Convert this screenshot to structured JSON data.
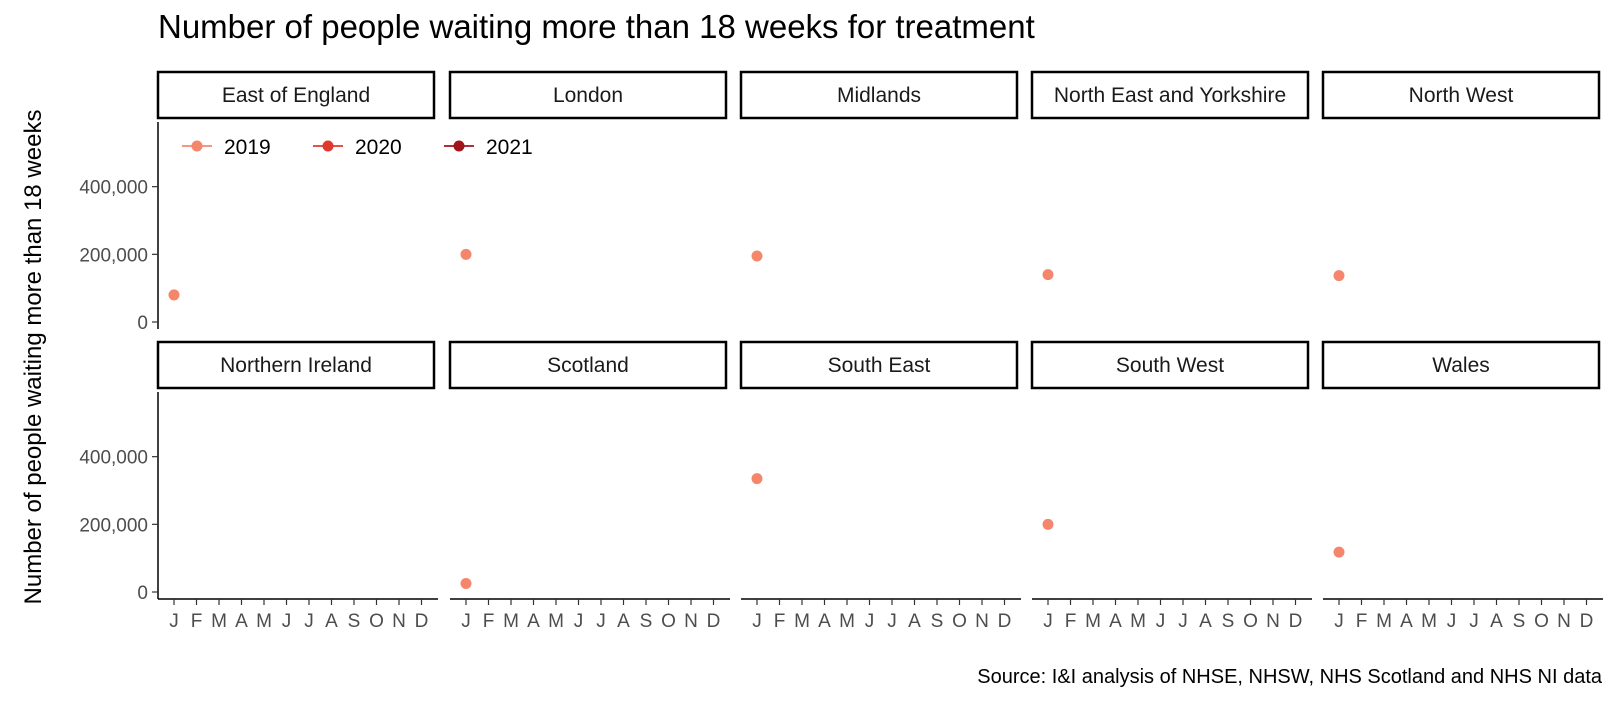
{
  "chart_data": {
    "type": "scatter",
    "title": "Number of people waiting more than 18 weeks for treatment",
    "ylabel": "Number of people waiting more than 18 weeks",
    "xlabel": "",
    "caption": "Source: I&I analysis of NHSE, NHSW, NHS Scotland and NHS NI data",
    "x_ticks": [
      "J",
      "F",
      "M",
      "A",
      "M",
      "J",
      "J",
      "A",
      "S",
      "O",
      "N",
      "D"
    ],
    "y_ticks": [
      0,
      200000,
      400000
    ],
    "y_tick_labels": [
      "0",
      "200,000",
      "400,000"
    ],
    "ylim": [
      0,
      600000
    ],
    "grid": false,
    "legend": {
      "placement": "top-left",
      "entries": [
        {
          "label": "2019",
          "color": "#f4876b"
        },
        {
          "label": "2020",
          "color": "#e0392b"
        },
        {
          "label": "2021",
          "color": "#a0141c"
        }
      ]
    },
    "panels": [
      {
        "region": "East of England",
        "points": [
          {
            "x": "J",
            "series": "2019",
            "y": 80000
          }
        ]
      },
      {
        "region": "London",
        "points": [
          {
            "x": "J",
            "series": "2019",
            "y": 200000
          }
        ]
      },
      {
        "region": "Midlands",
        "points": [
          {
            "x": "J",
            "series": "2019",
            "y": 195000
          }
        ]
      },
      {
        "region": "North East and Yorkshire",
        "points": [
          {
            "x": "J",
            "series": "2019",
            "y": 140000
          }
        ]
      },
      {
        "region": "North West",
        "points": [
          {
            "x": "J",
            "series": "2019",
            "y": 137000
          }
        ]
      },
      {
        "region": "Northern Ireland",
        "points": []
      },
      {
        "region": "Scotland",
        "points": [
          {
            "x": "J",
            "series": "2019",
            "y": 25000
          }
        ]
      },
      {
        "region": "South East",
        "points": [
          {
            "x": "J",
            "series": "2019",
            "y": 335000
          }
        ]
      },
      {
        "region": "South West",
        "points": [
          {
            "x": "J",
            "series": "2019",
            "y": 200000
          }
        ]
      },
      {
        "region": "Wales",
        "points": [
          {
            "x": "J",
            "series": "2019",
            "y": 118000
          }
        ]
      }
    ]
  }
}
